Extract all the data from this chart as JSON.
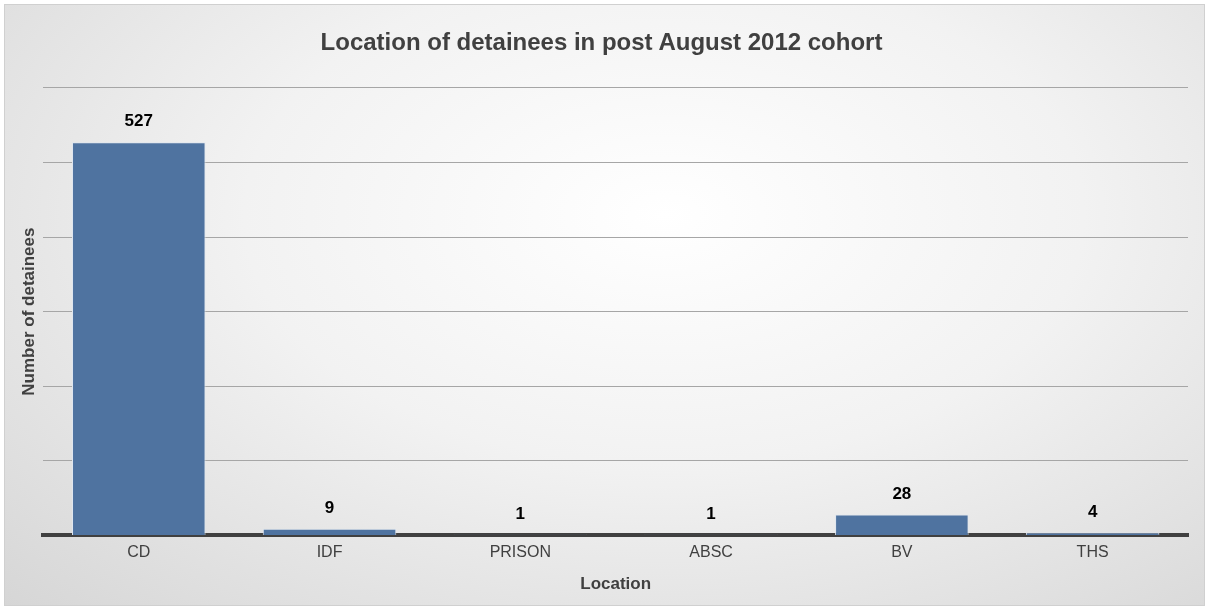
{
  "chart_data": {
    "type": "bar",
    "title": "Location of detainees in post August 2012 cohort",
    "xlabel": "Location",
    "ylabel": "Number of detainees",
    "categories": [
      "CD",
      "IDF",
      "PRISON",
      "ABSC",
      "BV",
      "THS"
    ],
    "values": [
      527,
      9,
      1,
      1,
      28,
      4
    ],
    "color": "#4f73a0",
    "ylim": [
      0,
      600
    ],
    "yticks": [
      {
        "value": 0,
        "label": null
      },
      {
        "value": 100,
        "label": null
      },
      {
        "value": 200,
        "label": null
      },
      {
        "value": 300,
        "label": null
      },
      {
        "value": 400,
        "label": null
      },
      {
        "value": 500,
        "label": null
      },
      {
        "value": 600,
        "label": null
      }
    ],
    "tick_labels": "x",
    "grid": "y",
    "data_labels": true,
    "legend": false
  }
}
